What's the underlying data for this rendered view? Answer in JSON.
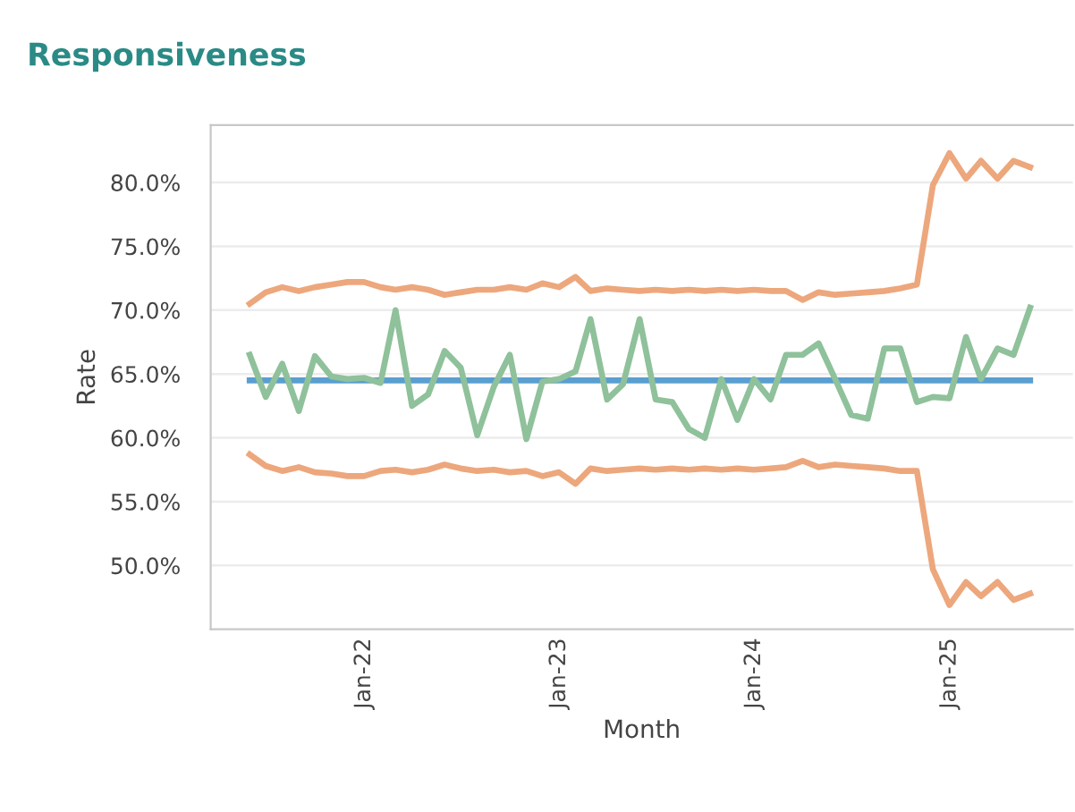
{
  "chart_data": {
    "type": "line",
    "title": "Responsiveness",
    "xlabel": "Month",
    "ylabel": "Rate",
    "x": [
      "2021-06",
      "2021-07",
      "2021-08",
      "2021-09",
      "2021-10",
      "2021-11",
      "2021-12",
      "2022-01",
      "2022-02",
      "2022-03",
      "2022-04",
      "2022-05",
      "2022-06",
      "2022-07",
      "2022-08",
      "2022-09",
      "2022-10",
      "2022-11",
      "2022-12",
      "2023-01",
      "2023-02",
      "2023-03",
      "2023-04",
      "2023-05",
      "2023-06",
      "2023-07",
      "2023-08",
      "2023-09",
      "2023-10",
      "2023-11",
      "2023-12",
      "2024-01",
      "2024-02",
      "2024-03",
      "2024-04",
      "2024-05",
      "2024-06",
      "2024-07",
      "2024-08",
      "2024-09",
      "2024-10",
      "2024-11",
      "2024-12",
      "2025-01",
      "2025-02",
      "2025-03",
      "2025-04",
      "2025-05",
      "2025-06"
    ],
    "series": [
      {
        "color": "#eda77c",
        "values": [
          70.5,
          71.4,
          71.8,
          71.5,
          71.8,
          72.0,
          72.2,
          72.2,
          71.8,
          71.6,
          71.8,
          71.6,
          71.2,
          71.4,
          71.6,
          71.6,
          71.8,
          71.6,
          72.1,
          71.8,
          72.6,
          71.5,
          71.7,
          71.6,
          71.5,
          71.6,
          71.5,
          71.6,
          71.5,
          71.6,
          71.5,
          71.6,
          71.5,
          71.5,
          70.8,
          71.4,
          71.2,
          71.3,
          71.4,
          71.5,
          71.7,
          72.0,
          79.8,
          82.3,
          80.3,
          81.7,
          80.3,
          81.7,
          81.2
        ]
      },
      {
        "color": "#eda77c",
        "values": [
          58.7,
          57.8,
          57.4,
          57.7,
          57.3,
          57.2,
          57.0,
          57.0,
          57.4,
          57.5,
          57.3,
          57.5,
          57.9,
          57.6,
          57.4,
          57.5,
          57.3,
          57.4,
          57.0,
          57.3,
          56.4,
          57.6,
          57.4,
          57.5,
          57.6,
          57.5,
          57.6,
          57.5,
          57.6,
          57.5,
          57.6,
          57.5,
          57.6,
          57.7,
          58.2,
          57.7,
          57.9,
          57.8,
          57.7,
          57.6,
          57.4,
          57.4,
          49.7,
          46.9,
          48.7,
          47.6,
          48.7,
          47.3,
          47.8
        ]
      },
      {
        "color": "#5a9fd0",
        "x": [
          "2021-06",
          "2025-06"
        ],
        "values": [
          64.5,
          64.5
        ]
      },
      {
        "color": "#8fc19b",
        "values": [
          66.5,
          63.2,
          65.8,
          62.1,
          66.4,
          64.8,
          64.6,
          64.7,
          64.3,
          70.0,
          62.5,
          63.4,
          66.8,
          65.5,
          60.2,
          64.0,
          66.5,
          59.9,
          64.4,
          64.6,
          65.2,
          69.3,
          63.0,
          64.2,
          69.3,
          63.0,
          62.8,
          60.7,
          60.0,
          64.6,
          61.4,
          64.6,
          63.0,
          66.5,
          66.5,
          67.4,
          64.6,
          61.8,
          61.5,
          67.0,
          67.0,
          62.8,
          63.2,
          63.1,
          67.9,
          64.6,
          67.0,
          66.5,
          70.2
        ]
      }
    ],
    "xlim": [
      "2021-03-20",
      "2025-08-20"
    ],
    "xticks": [
      {
        "value": "2022-01",
        "label": "Jan-22"
      },
      {
        "value": "2023-01",
        "label": "Jan-23"
      },
      {
        "value": "2024-01",
        "label": "Jan-24"
      },
      {
        "value": "2025-01",
        "label": "Jan-25"
      }
    ],
    "ylim": [
      45,
      84.5
    ],
    "yticks": [
      {
        "value": 50,
        "label": "50.0%"
      },
      {
        "value": 55,
        "label": "55.0%"
      },
      {
        "value": 60,
        "label": "60.0%"
      },
      {
        "value": 65,
        "label": "65.0%"
      },
      {
        "value": 70,
        "label": "70.0%"
      },
      {
        "value": 75,
        "label": "75.0%"
      },
      {
        "value": 80,
        "label": "80.0%"
      }
    ],
    "grid": "y",
    "marker": "none",
    "line_style": "solid"
  }
}
